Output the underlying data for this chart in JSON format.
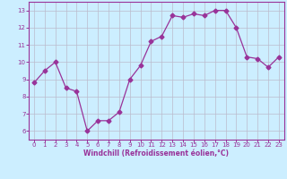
{
  "x": [
    0,
    1,
    2,
    3,
    4,
    5,
    6,
    7,
    8,
    9,
    10,
    11,
    12,
    13,
    14,
    15,
    16,
    17,
    18,
    19,
    20,
    21,
    22,
    23
  ],
  "y": [
    8.8,
    9.5,
    10.0,
    8.5,
    8.3,
    6.0,
    6.6,
    6.6,
    7.1,
    9.0,
    9.8,
    11.2,
    11.5,
    12.7,
    12.6,
    12.8,
    12.7,
    13.0,
    13.0,
    12.0,
    10.3,
    10.2,
    9.7,
    10.3
  ],
  "line_color": "#993399",
  "marker": "D",
  "marker_size": 2.5,
  "bg_color": "#cceeff",
  "grid_color": "#bbbbcc",
  "xlabel": "Windchill (Refroidissement éolien,°C)",
  "xlabel_color": "#993399",
  "tick_color": "#993399",
  "spine_color": "#993399",
  "ylim": [
    5.5,
    13.5
  ],
  "xlim": [
    -0.5,
    23.5
  ],
  "yticks": [
    6,
    7,
    8,
    9,
    10,
    11,
    12,
    13
  ],
  "xticks": [
    0,
    1,
    2,
    3,
    4,
    5,
    6,
    7,
    8,
    9,
    10,
    11,
    12,
    13,
    14,
    15,
    16,
    17,
    18,
    19,
    20,
    21,
    22,
    23
  ],
  "tick_fontsize": 5.0,
  "xlabel_fontsize": 5.5,
  "linewidth": 0.9
}
